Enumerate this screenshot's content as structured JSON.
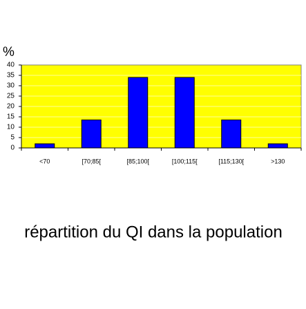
{
  "chart_data": {
    "type": "bar",
    "title": "répartition du QI dans la population",
    "y_label": "%",
    "categories": [
      "<70",
      "[70;85[",
      "[85;100[",
      "[100;115[",
      "[115;130[",
      ">130"
    ],
    "values": [
      2,
      13.5,
      34,
      34,
      13.5,
      2
    ],
    "color": "#0000ff",
    "ylim": [
      0,
      40
    ],
    "yticks": [
      0,
      5,
      10,
      15,
      20,
      25,
      30,
      35,
      40
    ],
    "grid": true
  }
}
